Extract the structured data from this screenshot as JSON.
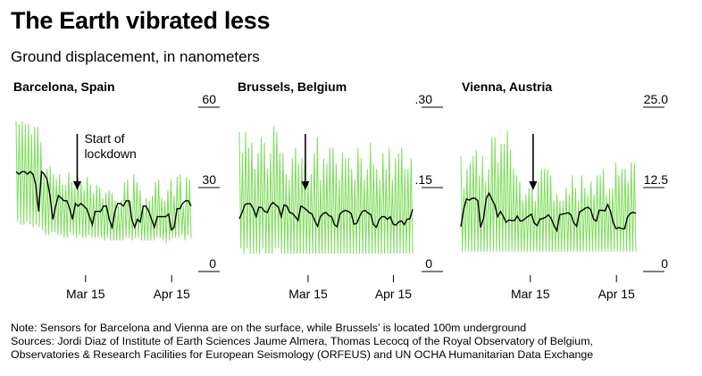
{
  "title": "The Earth vibrated less",
  "subtitle": "Ground displacement, in nanometers",
  "note": {
    "line1": "Note: Sensors for Barcelona and Vienna are on the surface, while Brussels’ is located 100m underground",
    "line2": "Sources: Jordi Diaz of Institute of Earth Sciences Jaume Almera, Thomas Lecocq of the Royal Observatory of Belgium,",
    "line3": "Observatories & Research Facilities for European Seismology (ORFEUS) and UN OCHA Humanitarian Data Exchange"
  },
  "colors": {
    "raw": "#7ddc5a",
    "smooth": "#000000",
    "axis": "#000000"
  },
  "chart_data": [
    {
      "type": "line",
      "title": "Barcelona, Spain",
      "x_ticks": [
        "Mar 15",
        "Apr 15"
      ],
      "y_ticks": [
        "60",
        "30",
        "0"
      ],
      "ylim": [
        0,
        60
      ],
      "x_range": [
        "Feb 18",
        "Apr 23"
      ],
      "annotation": {
        "text": [
          "Start of",
          "lockdown"
        ],
        "x": 22
      },
      "series": [
        {
          "role": "raw",
          "values": [
            54,
            16,
            53,
            15,
            54,
            15,
            53,
            16,
            53,
            15,
            49,
            14,
            52,
            15,
            52,
            14,
            46,
            13,
            34,
            11,
            36,
            11,
            37,
            12,
            34,
            12,
            32,
            11,
            34,
            11,
            30,
            10,
            30,
            10,
            35,
            12,
            31,
            11,
            29,
            10,
            33,
            11,
            31,
            10,
            28,
            10,
            33,
            11,
            30,
            10,
            27,
            10,
            30,
            10,
            29,
            10,
            25,
            9,
            27,
            10,
            28,
            9,
            27,
            9,
            24,
            9,
            22,
            9,
            24,
            9,
            31,
            10,
            32,
            10,
            24,
            9,
            34,
            10,
            31,
            10,
            28,
            9,
            22,
            9,
            25,
            9,
            24,
            9,
            26,
            9,
            31,
            10,
            32,
            10,
            25,
            9,
            24,
            8,
            28,
            9,
            32,
            10,
            26,
            10,
            33,
            10,
            34,
            11,
            22,
            9,
            33,
            11,
            32,
            10
          ]
        },
        {
          "role": "smooth",
          "values": [
            35,
            34,
            35,
            35,
            34,
            35,
            34,
            30,
            20,
            35,
            34,
            32,
            26,
            17,
            22,
            26,
            25,
            24,
            24,
            21,
            17,
            23,
            22,
            23,
            22,
            21,
            18,
            15,
            20,
            20,
            20,
            22,
            22,
            17,
            14,
            20,
            23,
            23,
            22,
            24,
            24,
            17,
            14,
            17,
            16,
            22,
            22,
            20,
            17,
            14,
            18,
            18,
            18,
            18,
            19,
            13,
            14,
            21,
            21,
            23,
            24,
            24,
            22
          ]
        }
      ]
    },
    {
      "type": "line",
      "title": "Brussels, Belgium",
      "x_ticks": [
        "Mar 15",
        "Apr 15"
      ],
      "y_ticks": [
        ".30",
        ".15",
        "0"
      ],
      "ylim": [
        0,
        0.3
      ],
      "x_range": [
        "Feb 18",
        "Apr 23"
      ],
      "annotation": {
        "text": [],
        "x": 24
      },
      "series": [
        {
          "role": "raw",
          "values": [
            0.25,
            0.03,
            0.21,
            0.02,
            0.25,
            0.03,
            0.22,
            0.02,
            0.23,
            0.02,
            0.18,
            0.02,
            0.21,
            0.02,
            0.24,
            0.03,
            0.23,
            0.02,
            0.18,
            0.02,
            0.21,
            0.02,
            0.26,
            0.03,
            0.25,
            0.03,
            0.21,
            0.02,
            0.21,
            0.02,
            0.17,
            0.02,
            0.16,
            0.02,
            0.2,
            0.02,
            0.22,
            0.02,
            0.19,
            0.02,
            0.2,
            0.02,
            0.19,
            0.02,
            0.16,
            0.02,
            0.17,
            0.02,
            0.21,
            0.02,
            0.24,
            0.02,
            0.16,
            0.02,
            0.2,
            0.02,
            0.19,
            0.02,
            0.22,
            0.02,
            0.22,
            0.02,
            0.19,
            0.02,
            0.16,
            0.02,
            0.21,
            0.02,
            0.2,
            0.02,
            0.2,
            0.02,
            0.18,
            0.02,
            0.16,
            0.02,
            0.22,
            0.02,
            0.2,
            0.02,
            0.16,
            0.02,
            0.18,
            0.02,
            0.23,
            0.02,
            0.19,
            0.02,
            0.18,
            0.02,
            0.16,
            0.02,
            0.21,
            0.02,
            0.18,
            0.02,
            0.22,
            0.02,
            0.16,
            0.02,
            0.2,
            0.02,
            0.21,
            0.02,
            0.22,
            0.02,
            0.18,
            0.02,
            0.18,
            0.02,
            0.2,
            0.02
          ]
        },
        {
          "role": "smooth",
          "values": [
            0.086,
            0.098,
            0.113,
            0.115,
            0.114,
            0.105,
            0.09,
            0.108,
            0.107,
            0.1,
            0.098,
            0.11,
            0.117,
            0.112,
            0.108,
            0.09,
            0.112,
            0.11,
            0.098,
            0.096,
            0.09,
            0.083,
            0.11,
            0.107,
            0.103,
            0.098,
            0.095,
            0.082,
            0.072,
            0.09,
            0.096,
            0.098,
            0.092,
            0.09,
            0.075,
            0.071,
            0.095,
            0.1,
            0.102,
            0.1,
            0.096,
            0.076,
            0.077,
            0.09,
            0.1,
            0.102,
            0.097,
            0.094,
            0.075,
            0.07,
            0.084,
            0.09,
            0.09,
            0.085,
            0.09,
            0.076,
            0.074,
            0.08,
            0.082,
            0.075,
            0.085,
            0.086,
            0.104
          ]
        }
      ]
    },
    {
      "type": "line",
      "title": "Vienna, Austria",
      "x_ticks": [
        "Mar 15",
        "Apr 15"
      ],
      "y_ticks": [
        "25.0",
        "12.5",
        "0"
      ],
      "ylim": [
        0,
        25
      ],
      "x_range": [
        "Feb 18",
        "Apr 23"
      ],
      "annotation": {
        "text": [],
        "x": 26
      },
      "series": [
        {
          "role": "raw",
          "values": [
            17,
            2,
            12,
            2,
            15,
            2,
            16,
            2,
            17,
            2,
            18,
            2,
            14,
            2,
            17,
            2,
            13,
            2,
            15,
            2,
            20,
            2,
            20,
            2,
            16,
            2,
            19,
            2,
            19,
            2,
            21,
            2,
            18,
            2,
            15,
            2,
            14,
            2,
            13,
            2,
            10,
            2,
            11,
            2,
            12,
            2,
            12,
            2,
            10,
            2,
            13,
            2,
            15,
            2,
            15,
            2,
            15,
            2,
            14,
            2,
            10,
            2,
            11,
            2,
            10,
            2,
            10,
            2,
            12,
            2,
            11,
            2,
            14,
            2,
            12,
            2,
            10,
            2,
            14,
            2,
            12,
            2,
            11,
            2,
            13,
            2,
            11,
            2,
            14,
            2,
            14,
            2,
            15,
            2,
            11,
            2,
            12,
            2,
            12,
            2,
            16,
            2,
            14,
            2,
            15,
            2,
            15,
            2,
            13,
            2,
            16,
            2,
            16,
            2
          ]
        },
        {
          "role": "smooth",
          "values": [
            5.9,
            8.7,
            10.3,
            10.1,
            10.4,
            10.4,
            10.0,
            5.8,
            7.2,
            10.4,
            11.2,
            10.2,
            9.4,
            7.5,
            8.3,
            7.6,
            6.6,
            7.0,
            6.9,
            6.9,
            7.6,
            6.8,
            6.9,
            7.3,
            7.6,
            7.9,
            6.5,
            6.1,
            7.1,
            7.2,
            7.4,
            7.8,
            7.2,
            6.1,
            5.3,
            7.8,
            7.9,
            8.0,
            8.1,
            7.8,
            6.5,
            6.0,
            8.2,
            8.5,
            8.8,
            9.0,
            8.6,
            7.1,
            6.8,
            8.5,
            8.5,
            8.4,
            9.4,
            8.4,
            6.5,
            5.6,
            5.8,
            5.6,
            5.6,
            7.4,
            8.0,
            8.2,
            8.0
          ]
        }
      ]
    }
  ]
}
